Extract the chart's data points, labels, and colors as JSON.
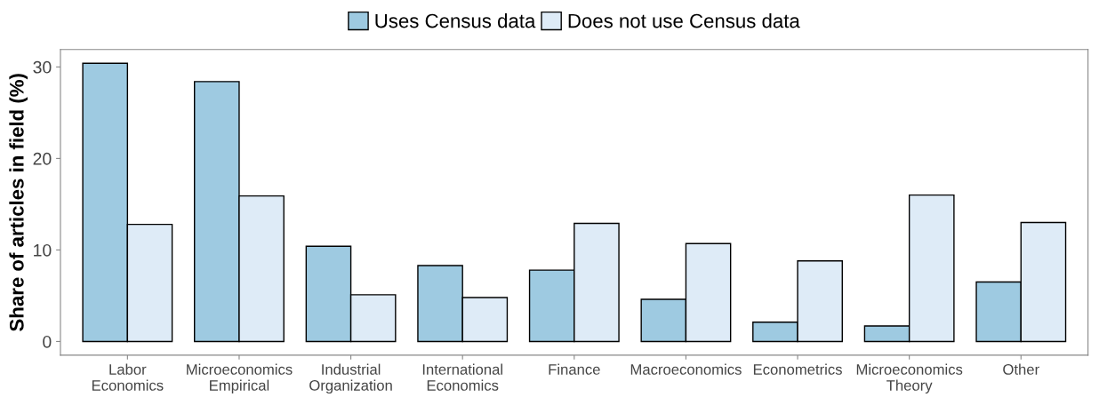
{
  "chart_data": {
    "type": "bar",
    "ylabel": "Share of articles in field (%)",
    "categories": [
      "Labor\nEconomics",
      "Microeconomics\nEmpirical",
      "Industrial\nOrganization",
      "International\nEconomics",
      "Finance",
      "Macroeconomics",
      "Econometrics",
      "Microeconomics\nTheory",
      "Other"
    ],
    "series": [
      {
        "name": "Uses Census data",
        "color": "#9ecae1",
        "values": [
          30.4,
          28.4,
          10.4,
          8.3,
          7.8,
          4.6,
          2.1,
          1.7,
          6.5
        ]
      },
      {
        "name": "Does not use Census data",
        "color": "#deebf7",
        "values": [
          12.8,
          15.9,
          5.1,
          4.8,
          12.9,
          10.7,
          8.8,
          16.0,
          13.0
        ]
      }
    ],
    "ylim": [
      -1.5,
      31.9
    ],
    "yticks": [
      0,
      10,
      20,
      30
    ],
    "grid": false,
    "legend": "top"
  }
}
